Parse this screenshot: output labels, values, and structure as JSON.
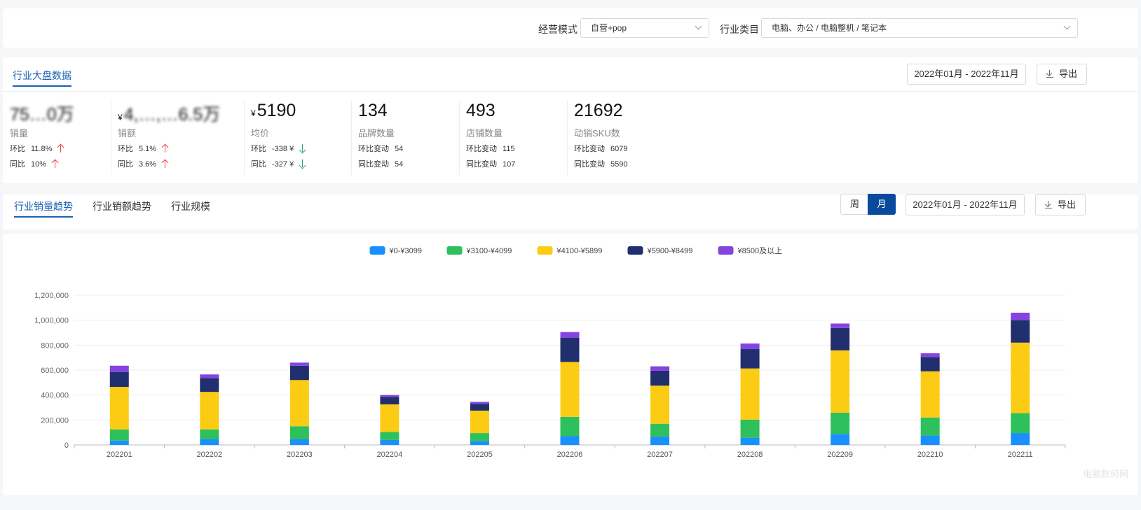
{
  "filters": {
    "mode_label": "经营模式",
    "mode_value": "自营+pop",
    "category_label": "行业类目",
    "category_value": "电脑、办公 / 电脑整机 / 笔记本"
  },
  "overview": {
    "tab": "行业大盘数据",
    "date_range": "2022年01月 - 2022年11月",
    "export": "导出",
    "stats": [
      {
        "value": "75…0万",
        "currency": "",
        "label": "销量",
        "r1k": "环比",
        "r1v": "11.8%",
        "r1dir": "up",
        "r2k": "同比",
        "r2v": "10%",
        "r2dir": "up"
      },
      {
        "value": "4,…,…6.5万",
        "currency": "¥",
        "label": "销额",
        "r1k": "环比",
        "r1v": "5.1%",
        "r1dir": "up",
        "r2k": "同比",
        "r2v": "3.6%",
        "r2dir": "up"
      },
      {
        "value": "5190",
        "currency": "¥",
        "label": "均价",
        "r1k": "环比",
        "r1v": "-338 ¥",
        "r1dir": "down",
        "r2k": "同比",
        "r2v": "-327 ¥",
        "r2dir": "down"
      },
      {
        "value": "134",
        "currency": "",
        "label": "品牌数量",
        "r1k": "环比变动",
        "r1v": "54",
        "r1dir": "",
        "r2k": "同比变动",
        "r2v": "54",
        "r2dir": ""
      },
      {
        "value": "493",
        "currency": "",
        "label": "店铺数量",
        "r1k": "环比变动",
        "r1v": "115",
        "r1dir": "",
        "r2k": "同比变动",
        "r2v": "107",
        "r2dir": ""
      },
      {
        "value": "21692",
        "currency": "",
        "label": "动销SKU数",
        "r1k": "环比变动",
        "r1v": "6079",
        "r1dir": "",
        "r2k": "同比变动",
        "r2v": "5590",
        "r2dir": ""
      }
    ]
  },
  "trend": {
    "tabs": [
      "行业销量趋势",
      "行业销额趋势",
      "行业规模"
    ],
    "week": "周",
    "month": "月",
    "date_range": "2022年01月 - 2022年11月",
    "export": "导出"
  },
  "watermark": "电脑数码网",
  "chart_data": {
    "type": "bar",
    "stacked": true,
    "categories": [
      "202201",
      "202202",
      "202203",
      "202204",
      "202205",
      "202206",
      "202207",
      "202208",
      "202209",
      "202210",
      "202211"
    ],
    "ylim": [
      0,
      1200000
    ],
    "yticks": [
      0,
      200000,
      400000,
      600000,
      800000,
      1000000,
      1200000
    ],
    "ytick_labels": [
      "0",
      "200,000",
      "400,000",
      "600,000",
      "800,000",
      "1,000,000",
      "1,200,000"
    ],
    "grid": true,
    "legend": "top-center",
    "series": [
      {
        "name": "¥0-¥3099",
        "color": "#1890ff",
        "values": [
          35000,
          45000,
          45000,
          40000,
          30000,
          70000,
          65000,
          58000,
          88000,
          75000,
          95000
        ]
      },
      {
        "name": "¥3100-¥4099",
        "color": "#2ec05c",
        "values": [
          90000,
          80000,
          105000,
          65000,
          65000,
          155000,
          105000,
          145000,
          170000,
          145000,
          160000
        ]
      },
      {
        "name": "¥4100-¥5899",
        "color": "#fccc14",
        "values": [
          340000,
          300000,
          370000,
          220000,
          180000,
          440000,
          305000,
          410000,
          500000,
          370000,
          565000
        ]
      },
      {
        "name": "¥5900-¥8499",
        "color": "#212f6e",
        "values": [
          120000,
          110000,
          115000,
          60000,
          55000,
          195000,
          120000,
          155000,
          180000,
          115000,
          180000
        ]
      },
      {
        "name": "¥8500及以上",
        "color": "#8543e0",
        "values": [
          50000,
          30000,
          25000,
          15000,
          15000,
          45000,
          35000,
          45000,
          35000,
          30000,
          60000
        ]
      }
    ]
  }
}
